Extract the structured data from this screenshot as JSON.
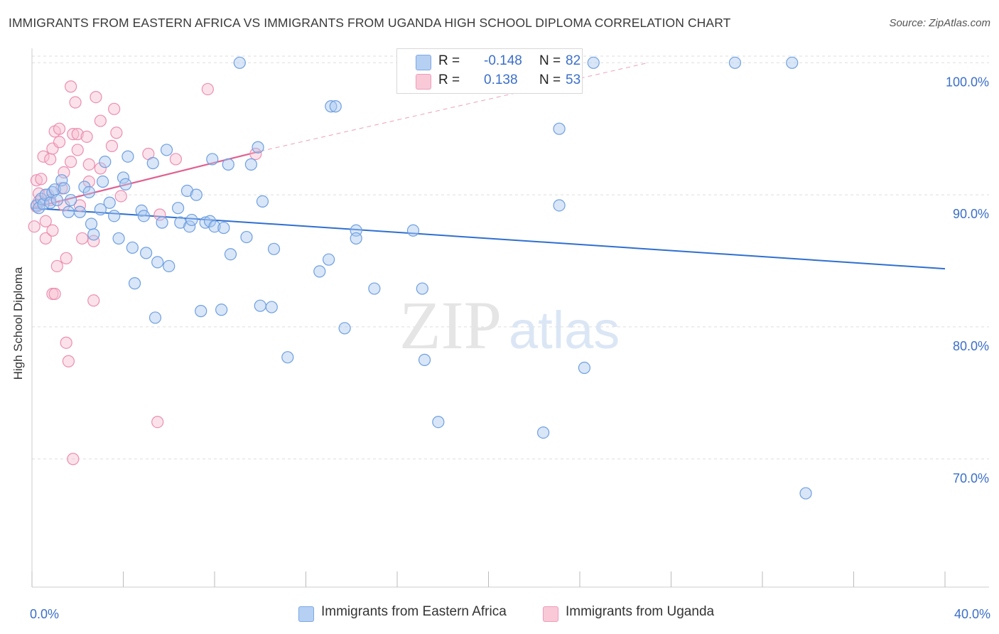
{
  "title": "IMMIGRANTS FROM EASTERN AFRICA VS IMMIGRANTS FROM UGANDA HIGH SCHOOL DIPLOMA CORRELATION CHART",
  "source": "Source: ZipAtlas.com",
  "watermark": "ZIPatlas",
  "legend": {
    "rows": [
      {
        "r_label": "R =",
        "r_value": "-0.148",
        "n_label": "N =",
        "n_value": "82",
        "color": "#9fc3ee"
      },
      {
        "r_label": "R =",
        "r_value": "0.138",
        "n_label": "N =",
        "n_value": "53",
        "color": "#f5b9cc"
      }
    ]
  },
  "bottom_legend": [
    {
      "label": "Immigrants from Eastern Africa",
      "color": "#9fc3ee"
    },
    {
      "label": "Immigrants from Uganda",
      "color": "#f5b9cc"
    }
  ],
  "colors": {
    "blue_fill": "#a9c8f0",
    "blue_stroke": "#6f9fe0",
    "blue_line": "#2f6fd0",
    "pink_fill": "#f7bfd1",
    "pink_stroke": "#ec8eb0",
    "pink_line": "#e0608f",
    "grid": "#dddddd",
    "tick_text": "#3b6fc8"
  },
  "chart_data": {
    "type": "scatter",
    "xlabel": "",
    "ylabel": "High School Diploma",
    "xlim": [
      0,
      40
    ],
    "ylim": [
      60.3,
      100.5
    ],
    "x_tick_labels": [
      {
        "value": 0,
        "label": "0.0%"
      },
      {
        "value": 40,
        "label": "40.0%"
      }
    ],
    "x_minor_ticks": [
      0,
      4,
      8,
      12,
      16,
      20,
      24,
      28,
      32,
      36,
      40
    ],
    "y_ticks": [
      {
        "value": 70,
        "label": "70.0%"
      },
      {
        "value": 80,
        "label": "80.0%"
      },
      {
        "value": 90,
        "label": "90.0%"
      },
      {
        "value": 100,
        "label": "100.0%"
      }
    ],
    "grid": true,
    "series": [
      {
        "name": "Immigrants from Eastern Africa",
        "R": -0.148,
        "N": 82,
        "trend": {
          "x": [
            0,
            40
          ],
          "y": [
            89.0,
            84.4
          ]
        },
        "points": [
          [
            0.2,
            89.2
          ],
          [
            0.3,
            89.0
          ],
          [
            0.4,
            89.7
          ],
          [
            0.5,
            89.3
          ],
          [
            0.6,
            90.0
          ],
          [
            0.8,
            89.4
          ],
          [
            0.9,
            90.2
          ],
          [
            1.0,
            90.4
          ],
          [
            1.1,
            89.6
          ],
          [
            1.3,
            91.1
          ],
          [
            1.4,
            90.5
          ],
          [
            1.6,
            88.7
          ],
          [
            1.7,
            89.6
          ],
          [
            2.1,
            88.7
          ],
          [
            2.3,
            90.6
          ],
          [
            2.5,
            90.2
          ],
          [
            2.6,
            87.8
          ],
          [
            2.7,
            87.0
          ],
          [
            3.0,
            88.9
          ],
          [
            3.1,
            91.0
          ],
          [
            3.2,
            92.5
          ],
          [
            3.4,
            89.4
          ],
          [
            3.6,
            88.4
          ],
          [
            3.8,
            86.7
          ],
          [
            4.0,
            91.3
          ],
          [
            4.1,
            90.8
          ],
          [
            4.2,
            92.9
          ],
          [
            4.4,
            86.0
          ],
          [
            4.5,
            83.3
          ],
          [
            4.8,
            88.8
          ],
          [
            4.9,
            88.4
          ],
          [
            5.0,
            85.6
          ],
          [
            5.3,
            92.4
          ],
          [
            5.4,
            80.7
          ],
          [
            5.5,
            84.9
          ],
          [
            5.7,
            87.9
          ],
          [
            5.9,
            93.4
          ],
          [
            6.0,
            84.6
          ],
          [
            6.4,
            89.0
          ],
          [
            6.5,
            87.9
          ],
          [
            6.8,
            90.3
          ],
          [
            6.9,
            87.6
          ],
          [
            7.0,
            88.1
          ],
          [
            7.2,
            90.0
          ],
          [
            7.4,
            81.2
          ],
          [
            7.6,
            87.9
          ],
          [
            7.8,
            88.0
          ],
          [
            7.9,
            92.7
          ],
          [
            8.0,
            87.6
          ],
          [
            8.3,
            81.3
          ],
          [
            8.4,
            87.5
          ],
          [
            8.6,
            92.3
          ],
          [
            8.7,
            85.5
          ],
          [
            9.1,
            100.0
          ],
          [
            9.4,
            86.8
          ],
          [
            9.6,
            92.3
          ],
          [
            9.9,
            93.6
          ],
          [
            10.0,
            81.6
          ],
          [
            10.1,
            89.5
          ],
          [
            10.5,
            81.5
          ],
          [
            10.6,
            85.9
          ],
          [
            11.2,
            77.7
          ],
          [
            12.6,
            84.2
          ],
          [
            13.0,
            85.1
          ],
          [
            13.1,
            96.7
          ],
          [
            13.3,
            96.7
          ],
          [
            13.7,
            79.9
          ],
          [
            14.2,
            87.3
          ],
          [
            14.2,
            86.7
          ],
          [
            15.0,
            82.9
          ],
          [
            16.6,
            100.0
          ],
          [
            16.7,
            87.3
          ],
          [
            17.1,
            82.9
          ],
          [
            17.2,
            77.5
          ],
          [
            17.8,
            72.8
          ],
          [
            22.4,
            72.0
          ],
          [
            23.1,
            95.0
          ],
          [
            23.1,
            89.2
          ],
          [
            24.2,
            76.9
          ],
          [
            24.6,
            100.0
          ],
          [
            30.8,
            100.0
          ],
          [
            33.3,
            100.0
          ],
          [
            33.9,
            67.4
          ]
        ]
      },
      {
        "name": "Immigrants from Uganda",
        "R": 0.138,
        "N": 53,
        "trend": {
          "x": [
            0,
            10
          ],
          "y": [
            89.0,
            93.3
          ]
        },
        "trend_extension": {
          "x": [
            10,
            27
          ],
          "y": [
            93.3,
            100.0
          ]
        },
        "points": [
          [
            0.1,
            87.6
          ],
          [
            0.2,
            89.1
          ],
          [
            0.2,
            91.1
          ],
          [
            0.3,
            90.1
          ],
          [
            0.3,
            89.5
          ],
          [
            0.4,
            91.2
          ],
          [
            0.5,
            92.9
          ],
          [
            0.6,
            86.7
          ],
          [
            0.6,
            88.0
          ],
          [
            0.7,
            90.0
          ],
          [
            0.8,
            89.6
          ],
          [
            0.8,
            92.7
          ],
          [
            0.9,
            93.5
          ],
          [
            0.9,
            87.3
          ],
          [
            0.9,
            82.5
          ],
          [
            1.0,
            82.5
          ],
          [
            1.0,
            94.8
          ],
          [
            1.1,
            84.6
          ],
          [
            1.2,
            95.0
          ],
          [
            1.2,
            94.0
          ],
          [
            1.3,
            90.5
          ],
          [
            1.4,
            89.2
          ],
          [
            1.4,
            91.7
          ],
          [
            1.5,
            78.8
          ],
          [
            1.5,
            85.2
          ],
          [
            1.6,
            77.4
          ],
          [
            1.7,
            92.5
          ],
          [
            1.7,
            98.2
          ],
          [
            1.8,
            94.6
          ],
          [
            1.8,
            70.0
          ],
          [
            1.9,
            97.0
          ],
          [
            2.0,
            94.6
          ],
          [
            2.0,
            93.4
          ],
          [
            2.1,
            89.2
          ],
          [
            2.2,
            86.7
          ],
          [
            2.4,
            94.4
          ],
          [
            2.5,
            92.3
          ],
          [
            2.5,
            91.0
          ],
          [
            2.7,
            86.5
          ],
          [
            2.7,
            82.0
          ],
          [
            2.8,
            97.4
          ],
          [
            3.0,
            92.0
          ],
          [
            3.0,
            95.6
          ],
          [
            3.5,
            93.7
          ],
          [
            3.6,
            96.5
          ],
          [
            3.7,
            94.7
          ],
          [
            3.9,
            89.9
          ],
          [
            5.1,
            93.1
          ],
          [
            5.5,
            72.8
          ],
          [
            5.6,
            88.5
          ],
          [
            6.3,
            92.7
          ],
          [
            7.7,
            98.0
          ],
          [
            9.8,
            93.1
          ]
        ]
      }
    ]
  }
}
